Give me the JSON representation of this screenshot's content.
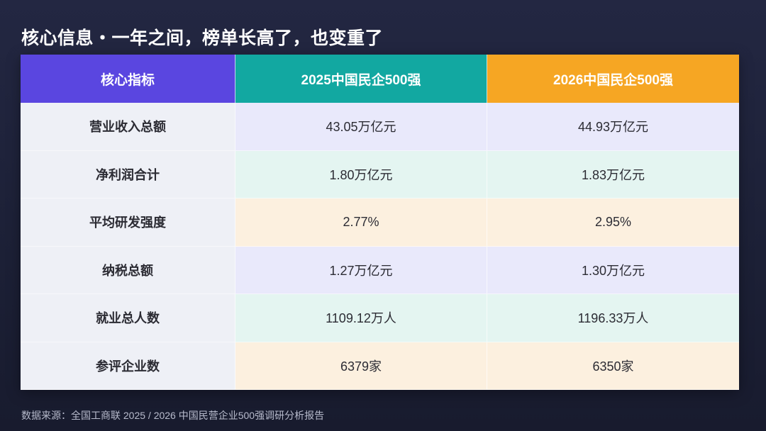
{
  "title": "核心信息・一年之间，榜单长高了，也变重了",
  "source": "数据来源：全国工商联 2025 / 2026 中国民营企业500强调研分析报告",
  "colors": {
    "header_metric": "#5a46e0",
    "header_2025": "#12a8a1",
    "header_2026": "#f6a623",
    "background": "#1c2036"
  },
  "chart_data": {
    "type": "table",
    "columns": [
      "核心指标",
      "2025中国民企500强",
      "2026中国民企500强"
    ],
    "rows": [
      [
        "营业收入总额",
        "43.05万亿元",
        "44.93万亿元"
      ],
      [
        "净利润合计",
        "1.80万亿元",
        "1.83万亿元"
      ],
      [
        "平均研发强度",
        "2.77%",
        "2.95%"
      ],
      [
        "纳税总额",
        "1.27万亿元",
        "1.30万亿元"
      ],
      [
        "就业总人数",
        "1109.12万人",
        "1196.33万人"
      ],
      [
        "参评企业数",
        "6379家",
        "6350家"
      ]
    ]
  }
}
